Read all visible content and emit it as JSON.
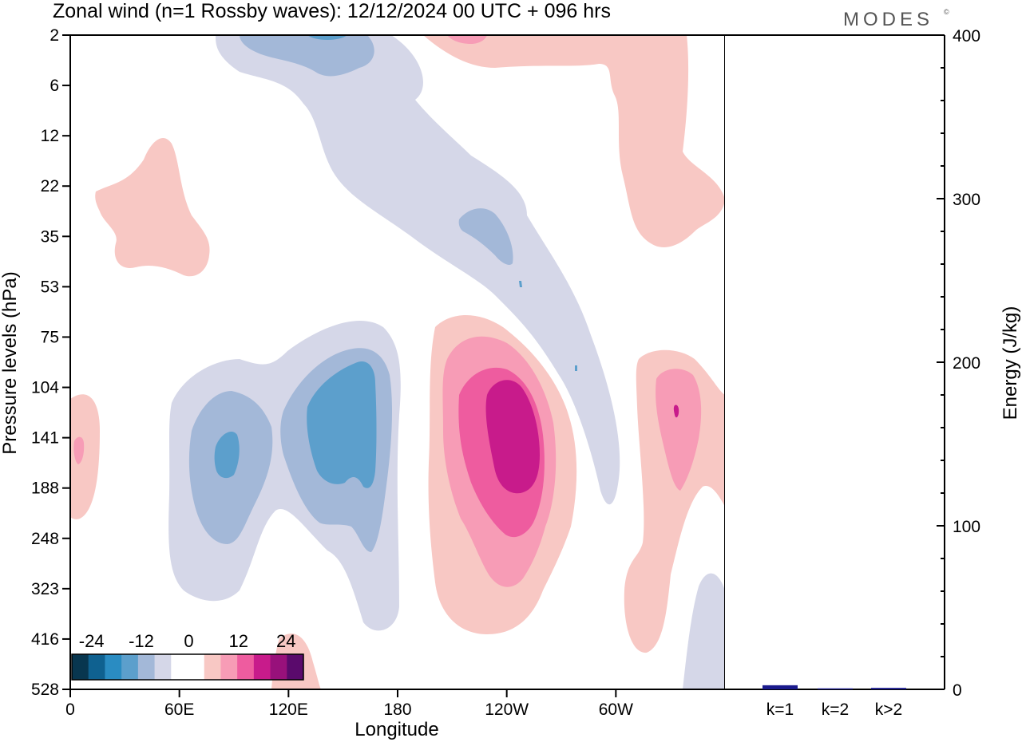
{
  "header": {
    "title": "Zonal wind (n=1 Rossby waves):  12/12/2024  00 UTC  + 096 hrs",
    "logo": "MODES",
    "logo_mark": "©"
  },
  "colors": {
    "neg": [
      "#08364f",
      "#0f6190",
      "#2a8cc2",
      "#5c9fcc",
      "#a3b8d8",
      "#d5d7e8"
    ],
    "pos": [
      "#f8c8c4",
      "#f79cb6",
      "#ee5c9f",
      "#c81b8b",
      "#98117b",
      "#5a0a6c"
    ],
    "neutral": "#ffffff"
  },
  "chart_data": {
    "type": "heatmap",
    "title": "Zonal wind (n=1 Rossby waves):  12/12/2024  00 UTC  + 096 hrs",
    "xlabel": "Longitude",
    "ylabel": "Pressure levels (hPa)",
    "x_ticks": [
      "0",
      "60E",
      "120E",
      "180",
      "120W",
      "60W"
    ],
    "y_ticks": [
      "2",
      "6",
      "12",
      "22",
      "35",
      "53",
      "75",
      "104",
      "141",
      "188",
      "248",
      "323",
      "416",
      "528"
    ],
    "colorbar": {
      "labels": [
        "-24",
        "-12",
        "0",
        "12",
        "24"
      ],
      "levels": [
        -24,
        -21,
        -18,
        -15,
        -12,
        -9,
        -6,
        -3,
        3,
        6,
        9,
        12,
        15,
        18,
        21,
        24
      ]
    },
    "contour_regions": [
      {
        "lon": 60,
        "level_index": 2.8,
        "value": 6,
        "note": "upper-left positive patch"
      },
      {
        "lon": 2,
        "level_index": 8.2,
        "value": 9,
        "note": "left edge positive"
      },
      {
        "lon": 85,
        "level_index": 8.2,
        "value": -12,
        "note": "negative cell over 80E"
      },
      {
        "lon": 150,
        "level_index": 8.1,
        "value": -12,
        "note": "negative cell near 150E"
      },
      {
        "lon": 240,
        "level_index": 8.2,
        "value": 21,
        "note": "positive core near 120W"
      },
      {
        "lon": 334,
        "level_index": 8.2,
        "value": 12,
        "note": "positive cell near 25W"
      },
      {
        "lon": 140,
        "level_index": 0.2,
        "value": -12,
        "note": "upper negative band"
      },
      {
        "lon": 305,
        "level_index": 1.5,
        "value": 6,
        "note": "upper positive band"
      }
    ],
    "energy_panel": {
      "type": "bar",
      "ylabel": "Energy (J/kg)",
      "y_ticks": [
        "0",
        "100",
        "200",
        "300",
        "400"
      ],
      "ylim": [
        0,
        400
      ],
      "categories": [
        "k=1",
        "k=2",
        "k>2"
      ],
      "values": [
        2.5,
        0.6,
        0.9
      ]
    }
  }
}
